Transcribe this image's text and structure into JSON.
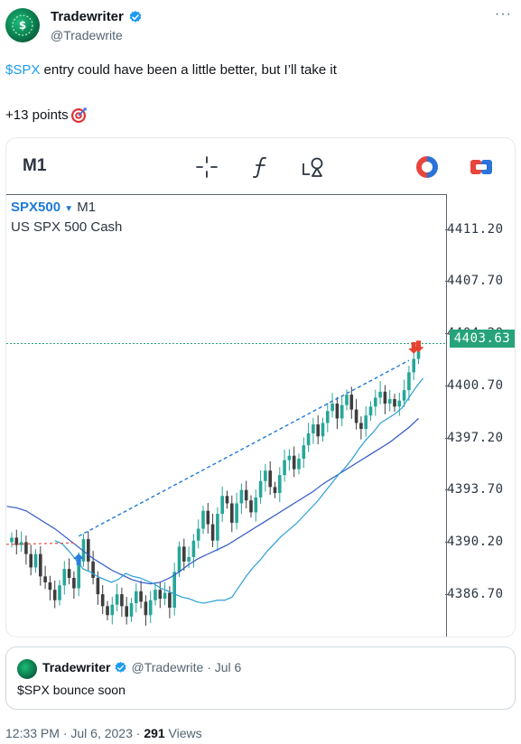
{
  "author": {
    "name": "Tradewriter",
    "handle": "@Tradewrite"
  },
  "tweet": {
    "cashtag": "$SPX",
    "line1_rest": " entry could have been a little better, but I’ll take it",
    "line2": "+13 points",
    "emoji": "direct-hit-target-icon"
  },
  "chart_card": {
    "timeframe_button": "M1",
    "toolbar_icons": [
      "crosshair-icon",
      "function-icon",
      "drawing-tools-icon",
      "theme-toggle-icon",
      "layout-icon"
    ],
    "symbol": "SPX500",
    "symbol_timeframe": "M1",
    "description": "US SPX 500 Cash",
    "current_price": "4403.63"
  },
  "chart_data": {
    "type": "candlestick",
    "y_ticks": [
      "4411.20",
      "4407.70",
      "4404.20",
      "4400.70",
      "4397.20",
      "4393.70",
      "4390.20",
      "4386.70"
    ],
    "ylim": [
      4383.9,
      4413.6
    ],
    "last_price": 4403.63,
    "price_line_style": "dotted teal",
    "closes": [
      4390.6,
      4390.1,
      4390.3,
      4389.5,
      4388.6,
      4389.5,
      4388.0,
      4387.6,
      4387.1,
      4386.4,
      4387.4,
      4388.5,
      4387.9,
      4387.2,
      4389.0,
      4390.5,
      4389.0,
      4387.9,
      4386.8,
      4386.0,
      4385.4,
      4386.1,
      4386.8,
      4386.0,
      4385.3,
      4386.2,
      4387.0,
      4386.3,
      4385.4,
      4386.4,
      4387.1,
      4386.5,
      4386.9,
      4385.9,
      4388.3,
      4390.0,
      4389.0,
      4389.3,
      4390.4,
      4391.2,
      4392.4,
      4391.5,
      4390.4,
      4392.2,
      4393.4,
      4392.9,
      4391.6,
      4392.9,
      4393.8,
      4393.1,
      4392.3,
      4393.3,
      4394.4,
      4395.1,
      4394.0,
      4393.6,
      4394.8,
      4395.8,
      4396.1,
      4395.2,
      4395.9,
      4396.8,
      4397.6,
      4398.2,
      4397.4,
      4398.3,
      4399.1,
      4399.6,
      4398.6,
      4399.5,
      4400.2,
      4399.2,
      4398.3,
      4397.9,
      4398.8,
      4399.4,
      4400.0,
      4400.4,
      4399.6,
      4399.9,
      4399.4,
      4399.8,
      4400.5,
      4401.7,
      4402.6,
      4403.1
    ],
    "ema_fast": [
      4390.4,
      4390.2,
      4389.7,
      4389.1,
      4388.5,
      4388.3,
      4388.0,
      4387.8,
      4387.6,
      4387.8,
      4388.2,
      4388.0,
      4387.9,
      4387.7,
      4387.5,
      4387.2,
      4387.0,
      4386.8,
      4386.6,
      4386.5,
      4386.3,
      4386.2,
      4386.3,
      4386.4,
      4386.4,
      4386.6,
      4387.3,
      4388.0,
      4388.6,
      4389.1,
      4389.7,
      4390.2,
      4390.7,
      4391.1,
      4391.5,
      4392.0,
      4392.5,
      4393.0,
      4393.6,
      4394.2,
      4394.8,
      4395.3,
      4395.9,
      4396.6,
      4397.2,
      4397.7,
      4398.3,
      4398.6,
      4398.9,
      4399.3,
      4400.0,
      4400.7,
      4401.3
    ],
    "ema_slow": [
      4392.7,
      4392.6,
      4392.4,
      4392.0,
      4391.6,
      4391.2,
      4390.7,
      4390.2,
      4389.7,
      4389.2,
      4388.8,
      4388.4,
      4388.1,
      4387.8,
      4387.6,
      4387.5,
      4387.6,
      4387.9,
      4388.3,
      4388.8,
      4389.2,
      4389.5,
      4389.8,
      4390.1,
      4390.5,
      4390.9,
      4391.3,
      4391.7,
      4392.1,
      4392.5,
      4392.9,
      4393.3,
      4393.7,
      4394.2,
      4394.6,
      4395.0,
      4395.4,
      4395.8,
      4396.2,
      4396.6,
      4397.0,
      4397.5,
      4398.0,
      4398.6
    ],
    "annotations": [
      {
        "type": "buy-arrow",
        "x_index": 14,
        "price": 4389.6
      },
      {
        "type": "sell-arrow",
        "x_index": 84,
        "price": 4403.0
      },
      {
        "type": "sell-arrow",
        "x_index": 85,
        "price": 4403.1
      },
      {
        "type": "trade-line",
        "from_index": 14,
        "from_price": 4390.7,
        "to_index": 83,
        "to_price": 4402.5
      }
    ],
    "grid": false
  },
  "quoted": {
    "name": "Tradewriter",
    "meta": "@Tradewrite · Jul 6",
    "text": "$SPX bounce soon"
  },
  "footer": {
    "time": "12:33 PM · Jul 6, 2023 · ",
    "views": "291",
    "views_label": " Views"
  },
  "colors": {
    "up": "#26a69a",
    "down": "#3d3d3d",
    "ema_fast": "#2a9fd6",
    "ema_slow": "#2f57c8",
    "trade_line": "#1e7ad8",
    "price_line": "#26a37a",
    "verified": "#1d9bf0"
  }
}
